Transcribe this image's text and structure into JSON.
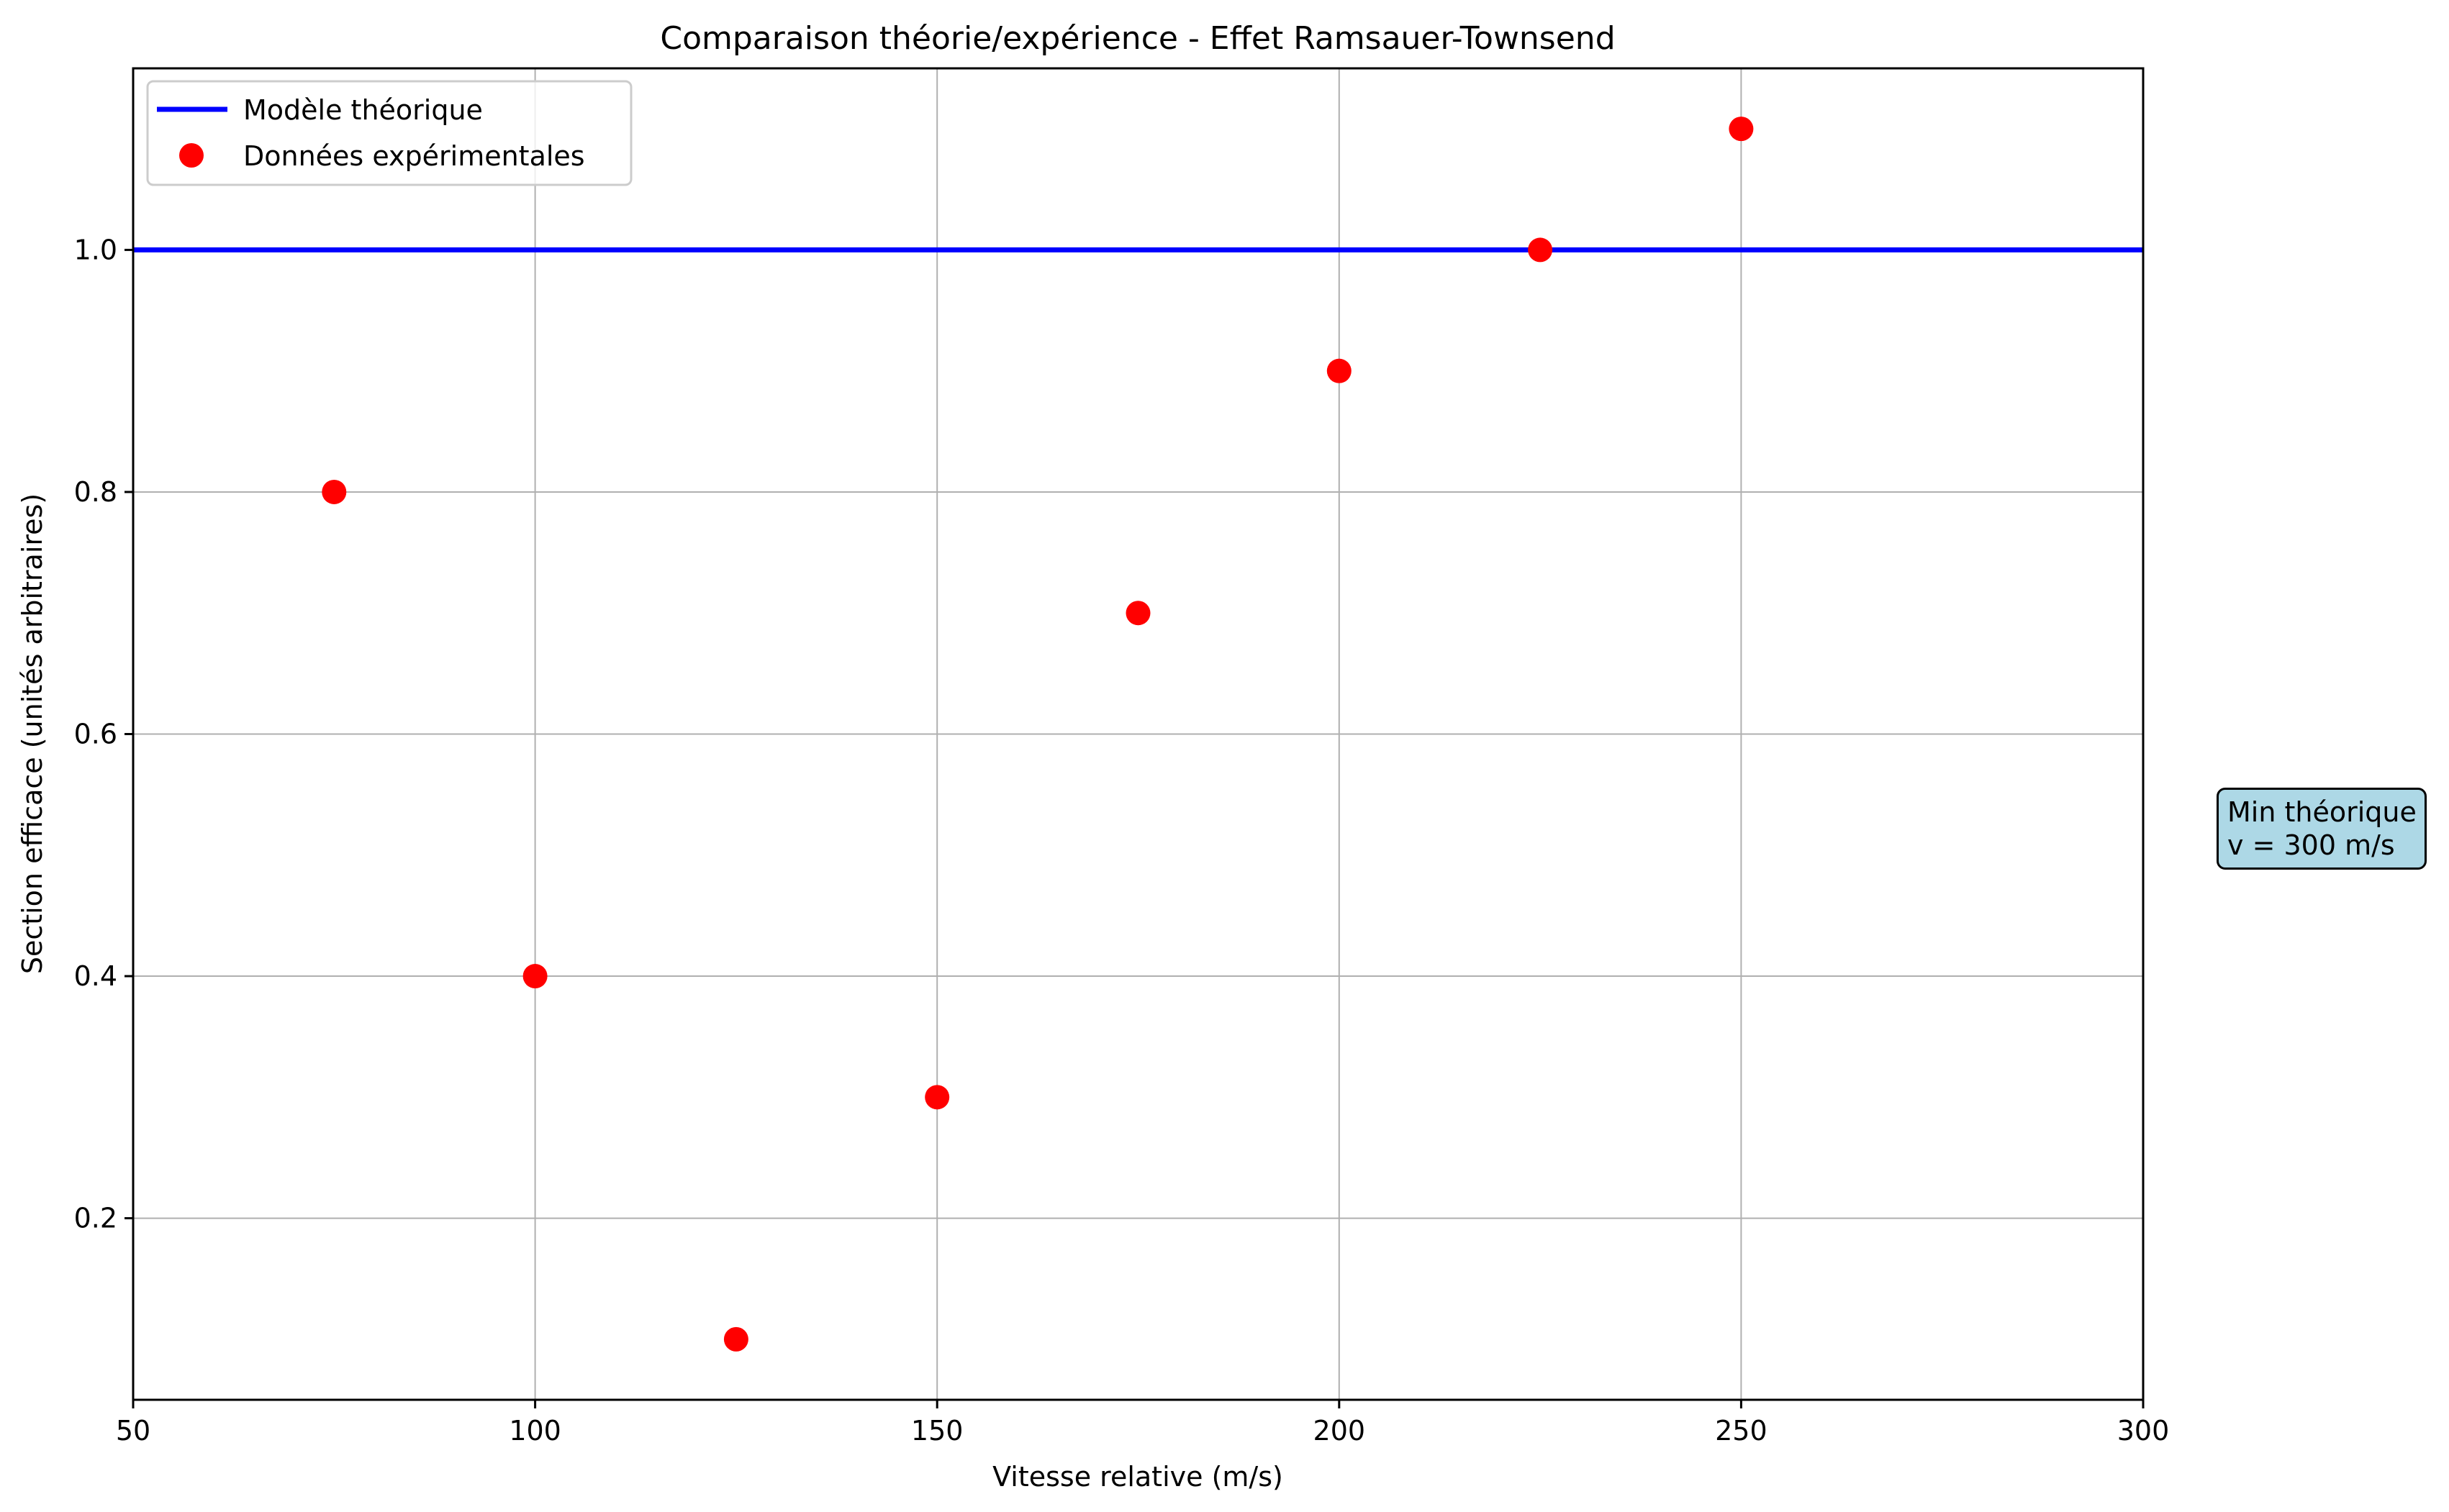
{
  "chart_data": {
    "type": "scatter",
    "title": "Comparaison théorie/expérience - Effet Ramsauer-Townsend",
    "xlabel": "Vitesse relative (m/s)",
    "ylabel": "Section efficace (unités arbitraires)",
    "xlim": [
      50,
      300
    ],
    "ylim": [
      0.05,
      1.15
    ],
    "xticks": [
      50,
      100,
      150,
      200,
      250,
      300
    ],
    "xtick_labels": [
      "50",
      "100",
      "150",
      "200",
      "250",
      "300"
    ],
    "yticks": [
      0.2,
      0.4,
      0.6,
      0.8,
      1.0
    ],
    "ytick_labels": [
      "0.2",
      "0.4",
      "0.6",
      "0.8",
      "1.0"
    ],
    "grid": true,
    "legend_position": "top-left",
    "series": [
      {
        "name": "Modèle théorique",
        "kind": "line",
        "color": "#0000ff",
        "x": [
          50,
          300
        ],
        "y": [
          1.0,
          1.0
        ]
      },
      {
        "name": "Données expérimentales",
        "kind": "scatter",
        "color": "#ff0000",
        "x": [
          75,
          100,
          125,
          150,
          175,
          200,
          225,
          250
        ],
        "y": [
          0.8,
          0.4,
          0.1,
          0.3,
          0.7,
          0.9,
          1.0,
          1.1
        ]
      }
    ],
    "vline": {
      "x": 300,
      "style": "dashed",
      "color": "#0000ff"
    },
    "annotation": {
      "lines": [
        "Min théorique",
        "v = 300 m/s"
      ],
      "background": "#add8e6"
    }
  }
}
